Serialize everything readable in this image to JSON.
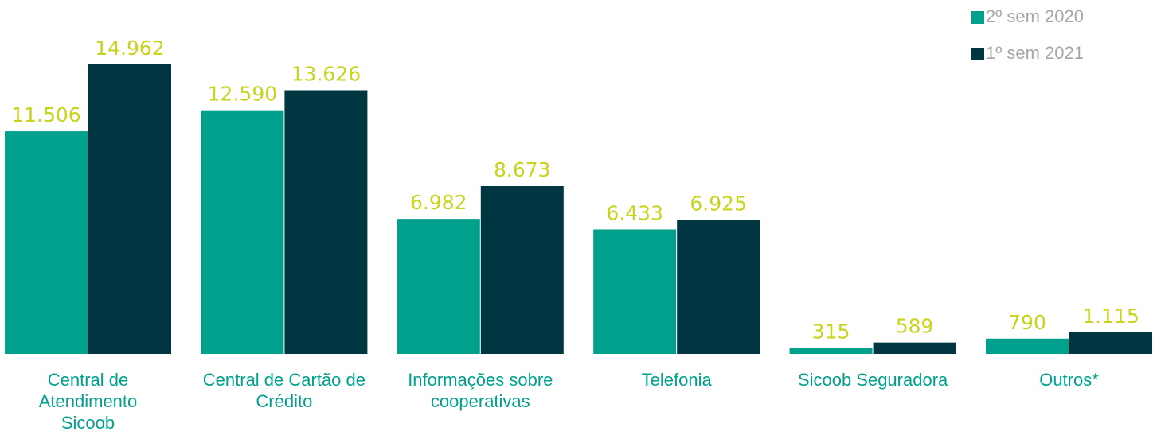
{
  "chart_data": {
    "type": "bar",
    "categories": [
      "Central de Atendimento Sicoob",
      "Central de Cartão de Crédito",
      "Informações sobre cooperativas",
      "Telefonia",
      "Sicoob Seguradora",
      "Outros*"
    ],
    "series": [
      {
        "name": "2º sem 2020",
        "color": "#00a08c",
        "values": [
          11506,
          12590,
          6982,
          6433,
          315,
          790
        ],
        "value_labels": [
          "11.506",
          "12.590",
          "6.982",
          "6.433",
          "315",
          "790"
        ]
      },
      {
        "name": "1º sem 2021",
        "color": "#003641",
        "values": [
          14962,
          13626,
          8673,
          6925,
          589,
          1115
        ],
        "value_labels": [
          "14.962",
          "13.626",
          "8.673",
          "6.925",
          "589",
          "1.115"
        ]
      }
    ],
    "legend": "top-right"
  }
}
